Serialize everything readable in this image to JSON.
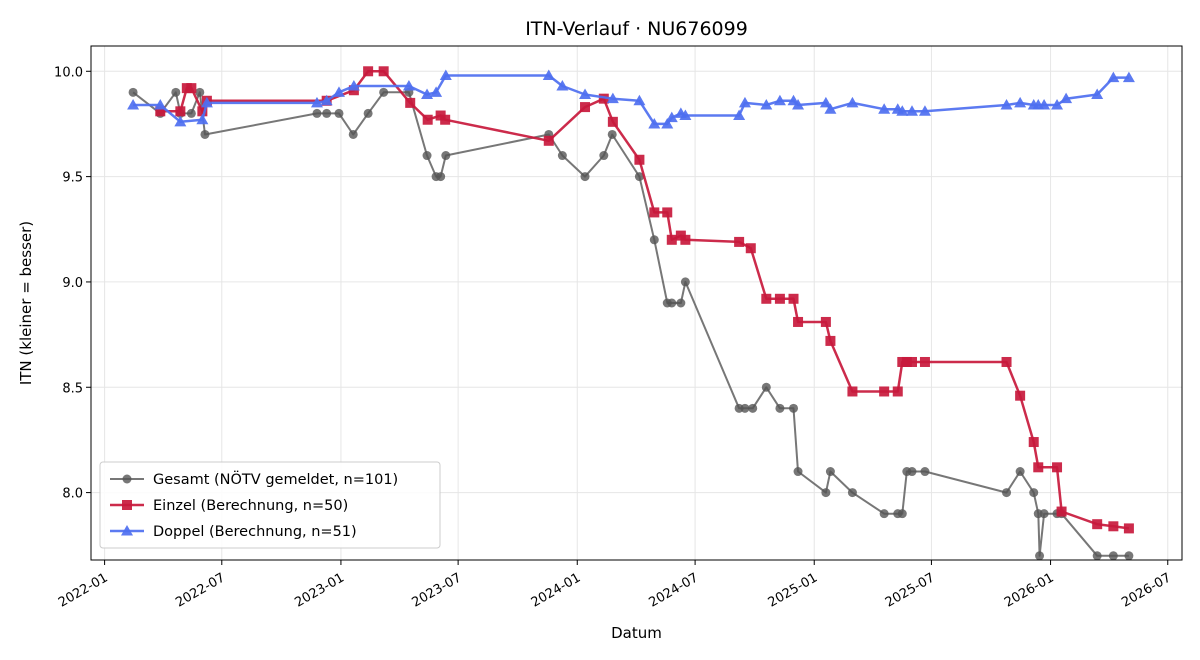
{
  "chart_data": {
    "type": "line",
    "title": "ITN-Verlauf · NU676099",
    "xlabel": "Datum",
    "ylabel": "ITN  (kleiner = besser)",
    "xlim": [
      "2021-12-11",
      "2026-07-23"
    ],
    "ylim": [
      7.68,
      10.12
    ],
    "y_ticks": [
      8.0,
      8.5,
      9.0,
      9.5,
      10.0
    ],
    "x_ticks": [
      "2022-01-01",
      "2022-07-01",
      "2023-01-01",
      "2023-07-01",
      "2024-01-01",
      "2024-07-01",
      "2025-01-01",
      "2025-07-01",
      "2026-01-01",
      "2026-07-01"
    ],
    "x_tick_labels": [
      "2022-01",
      "2022-07",
      "2023-01",
      "2023-07",
      "2024-01",
      "2024-07",
      "2025-01",
      "2025-07",
      "2026-01",
      "2026-07"
    ],
    "grid": true,
    "legend_position": "lower-left",
    "series": [
      {
        "name": "Gesamt (NÖTV gemeldet, n=101)",
        "color": "#555555",
        "marker": "circle",
        "points": [
          [
            "2022-02-14",
            9.9
          ],
          [
            "2022-03-28",
            9.8
          ],
          [
            "2022-04-21",
            9.9
          ],
          [
            "2022-04-28",
            9.8
          ],
          [
            "2022-05-15",
            9.8
          ],
          [
            "2022-05-28",
            9.9
          ],
          [
            "2022-06-05",
            9.7
          ],
          [
            "2022-11-25",
            9.8
          ],
          [
            "2022-12-10",
            9.8
          ],
          [
            "2022-12-29",
            9.8
          ],
          [
            "2023-01-20",
            9.7
          ],
          [
            "2023-02-12",
            9.8
          ],
          [
            "2023-03-08",
            9.9
          ],
          [
            "2023-04-16",
            9.9
          ],
          [
            "2023-05-14",
            9.6
          ],
          [
            "2023-05-28",
            9.5
          ],
          [
            "2023-06-04",
            9.5
          ],
          [
            "2023-06-12",
            9.6
          ],
          [
            "2023-11-18",
            9.7
          ],
          [
            "2023-12-09",
            9.6
          ],
          [
            "2024-01-13",
            9.5
          ],
          [
            "2024-02-11",
            9.6
          ],
          [
            "2024-02-24",
            9.7
          ],
          [
            "2024-04-06",
            9.5
          ],
          [
            "2024-04-29",
            9.2
          ],
          [
            "2024-05-19",
            8.9
          ],
          [
            "2024-05-26",
            8.9
          ],
          [
            "2024-06-09",
            8.9
          ],
          [
            "2024-06-16",
            9.0
          ],
          [
            "2024-09-07",
            8.4
          ],
          [
            "2024-09-16",
            8.4
          ],
          [
            "2024-09-28",
            8.4
          ],
          [
            "2024-10-19",
            8.5
          ],
          [
            "2024-11-09",
            8.4
          ],
          [
            "2024-11-30",
            8.4
          ],
          [
            "2024-12-07",
            8.1
          ],
          [
            "2025-01-19",
            8.0
          ],
          [
            "2025-01-26",
            8.1
          ],
          [
            "2025-03-01",
            8.0
          ],
          [
            "2025-04-19",
            7.9
          ],
          [
            "2025-05-10",
            7.9
          ],
          [
            "2025-05-17",
            7.9
          ],
          [
            "2025-05-24",
            8.1
          ],
          [
            "2025-06-01",
            8.1
          ],
          [
            "2025-06-21",
            8.1
          ],
          [
            "2025-10-25",
            8.0
          ],
          [
            "2025-11-15",
            8.1
          ],
          [
            "2025-12-06",
            8.0
          ],
          [
            "2025-12-13",
            7.9
          ],
          [
            "2025-12-15",
            7.7
          ],
          [
            "2025-12-22",
            7.9
          ],
          [
            "2026-01-11",
            7.9
          ],
          [
            "2026-01-18",
            7.9
          ],
          [
            "2026-03-14",
            7.7
          ],
          [
            "2026-04-08",
            7.7
          ],
          [
            "2026-05-02",
            7.7
          ]
        ]
      },
      {
        "name": "Einzel (Berechnung, n=50)",
        "color": "#c8193c",
        "marker": "square",
        "points": [
          [
            "2022-03-28",
            9.81
          ],
          [
            "2022-04-28",
            9.81
          ],
          [
            "2022-05-08",
            9.92
          ],
          [
            "2022-05-15",
            9.92
          ],
          [
            "2022-06-01",
            9.81
          ],
          [
            "2022-06-08",
            9.86
          ],
          [
            "2022-12-10",
            9.86
          ],
          [
            "2023-01-21",
            9.91
          ],
          [
            "2023-02-12",
            10.0
          ],
          [
            "2023-03-08",
            10.0
          ],
          [
            "2023-04-18",
            9.85
          ],
          [
            "2023-05-15",
            9.77
          ],
          [
            "2023-06-04",
            9.79
          ],
          [
            "2023-06-11",
            9.77
          ],
          [
            "2023-11-18",
            9.67
          ],
          [
            "2024-01-13",
            9.83
          ],
          [
            "2024-02-11",
            9.87
          ],
          [
            "2024-02-25",
            9.76
          ],
          [
            "2024-04-06",
            9.58
          ],
          [
            "2024-04-29",
            9.33
          ],
          [
            "2024-05-19",
            9.33
          ],
          [
            "2024-05-26",
            9.2
          ],
          [
            "2024-06-09",
            9.22
          ],
          [
            "2024-06-16",
            9.2
          ],
          [
            "2024-09-07",
            9.19
          ],
          [
            "2024-09-25",
            9.16
          ],
          [
            "2024-10-19",
            8.92
          ],
          [
            "2024-11-09",
            8.92
          ],
          [
            "2024-11-30",
            8.92
          ],
          [
            "2024-12-07",
            8.81
          ],
          [
            "2025-01-19",
            8.81
          ],
          [
            "2025-01-26",
            8.72
          ],
          [
            "2025-03-01",
            8.48
          ],
          [
            "2025-04-19",
            8.48
          ],
          [
            "2025-05-10",
            8.48
          ],
          [
            "2025-05-17",
            8.62
          ],
          [
            "2025-05-24",
            8.62
          ],
          [
            "2025-06-01",
            8.62
          ],
          [
            "2025-06-21",
            8.62
          ],
          [
            "2025-10-25",
            8.62
          ],
          [
            "2025-11-15",
            8.46
          ],
          [
            "2025-12-06",
            8.24
          ],
          [
            "2025-12-13",
            8.12
          ],
          [
            "2026-01-11",
            8.12
          ],
          [
            "2026-01-18",
            7.91
          ],
          [
            "2026-03-14",
            7.85
          ],
          [
            "2026-04-08",
            7.84
          ],
          [
            "2026-05-02",
            7.83
          ]
        ]
      },
      {
        "name": "Doppel (Berechnung, n=51)",
        "color": "#4e6ff0",
        "marker": "triangle",
        "points": [
          [
            "2022-02-14",
            9.84
          ],
          [
            "2022-03-28",
            9.84
          ],
          [
            "2022-04-28",
            9.76
          ],
          [
            "2022-06-01",
            9.77
          ],
          [
            "2022-06-08",
            9.85
          ],
          [
            "2022-11-25",
            9.85
          ],
          [
            "2022-12-10",
            9.86
          ],
          [
            "2022-12-29",
            9.9
          ],
          [
            "2023-01-21",
            9.93
          ],
          [
            "2023-04-16",
            9.93
          ],
          [
            "2023-05-14",
            9.89
          ],
          [
            "2023-05-28",
            9.9
          ],
          [
            "2023-06-12",
            9.98
          ],
          [
            "2023-11-18",
            9.98
          ],
          [
            "2023-12-09",
            9.93
          ],
          [
            "2024-01-13",
            9.89
          ],
          [
            "2024-02-25",
            9.87
          ],
          [
            "2024-04-06",
            9.86
          ],
          [
            "2024-04-29",
            9.75
          ],
          [
            "2024-05-19",
            9.75
          ],
          [
            "2024-05-26",
            9.78
          ],
          [
            "2024-06-09",
            9.8
          ],
          [
            "2024-06-16",
            9.79
          ],
          [
            "2024-09-07",
            9.79
          ],
          [
            "2024-09-16",
            9.85
          ],
          [
            "2024-10-19",
            9.84
          ],
          [
            "2024-11-09",
            9.86
          ],
          [
            "2024-11-30",
            9.86
          ],
          [
            "2024-12-07",
            9.84
          ],
          [
            "2025-01-19",
            9.85
          ],
          [
            "2025-01-26",
            9.82
          ],
          [
            "2025-03-01",
            9.85
          ],
          [
            "2025-04-19",
            9.82
          ],
          [
            "2025-05-10",
            9.82
          ],
          [
            "2025-05-17",
            9.81
          ],
          [
            "2025-06-01",
            9.81
          ],
          [
            "2025-06-21",
            9.81
          ],
          [
            "2025-10-25",
            9.84
          ],
          [
            "2025-11-15",
            9.85
          ],
          [
            "2025-12-06",
            9.84
          ],
          [
            "2025-12-13",
            9.84
          ],
          [
            "2025-12-22",
            9.84
          ],
          [
            "2026-01-11",
            9.84
          ],
          [
            "2026-01-25",
            9.87
          ],
          [
            "2026-03-14",
            9.89
          ],
          [
            "2026-04-08",
            9.97
          ],
          [
            "2026-05-02",
            9.97
          ]
        ]
      }
    ]
  }
}
